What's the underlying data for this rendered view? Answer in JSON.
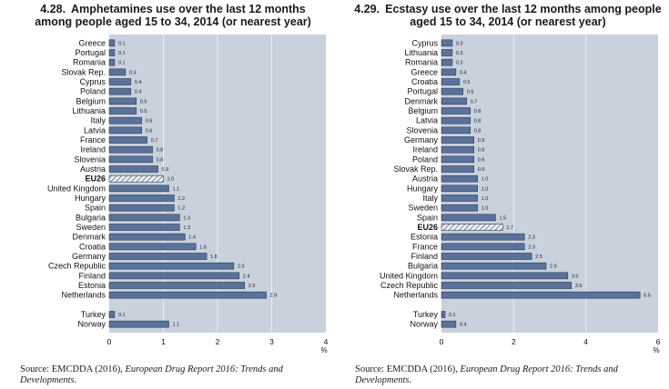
{
  "chart_data": [
    {
      "type": "bar",
      "orientation": "horizontal",
      "number": "4.28.",
      "title_line1": "Amphetamines use over the last 12 months",
      "title_line2": "among people aged 15 to 34, 2014 (or nearest year)",
      "xlabel": "%",
      "xlim": [
        0,
        4
      ],
      "xticks": [
        "0",
        "1",
        "2",
        "3",
        "4"
      ],
      "grid": true,
      "highlight": "EU26",
      "categories": [
        "Greece",
        "Portugal",
        "Romania",
        "Slovak Rep.",
        "Cyprus",
        "Poland",
        "Belgium",
        "Lithuania",
        "Italy",
        "Latvia",
        "France",
        "Ireland",
        "Slovenia",
        "Austria",
        "EU26",
        "United Kingdom",
        "Hungary",
        "Spain",
        "Bulgaria",
        "Sweden",
        "Denmark",
        "Croatia",
        "Germany",
        "Czech Republic",
        "Finland",
        "Estonia",
        "Netherlands",
        "",
        "Turkey",
        "Norway"
      ],
      "values": [
        0.1,
        0.1,
        0.1,
        0.3,
        0.4,
        0.4,
        0.5,
        0.5,
        0.6,
        0.6,
        0.7,
        0.8,
        0.8,
        0.9,
        1.0,
        1.1,
        1.2,
        1.2,
        1.3,
        1.3,
        1.4,
        1.6,
        1.8,
        2.3,
        2.4,
        2.5,
        2.9,
        null,
        0.1,
        1.1
      ],
      "labels": [
        "0.1",
        "0.1",
        "0.1",
        "0.3",
        "0.4",
        "0.4",
        "0.5",
        "0.5",
        "0.6",
        "0.6",
        "0.7",
        "0.8",
        "0.8",
        "0.9",
        "1.0",
        "1.1",
        "1.2",
        "1.2",
        "1.3",
        "1.3",
        "1.4",
        "1.6",
        "1.8",
        "2.3",
        "2.4",
        "2.5",
        "2.9",
        "",
        "0.1",
        "1.1"
      ],
      "source_prefix": "Source: EMCDDA (2016), ",
      "source_italic": "European Drug Report 2016: Trends and Developments",
      "source_suffix": "."
    },
    {
      "type": "bar",
      "orientation": "horizontal",
      "number": "4.29.",
      "title_line1": "Ecstasy use over the last 12 months among people",
      "title_line2": "aged 15 to 34, 2014 (or nearest year)",
      "xlabel": "%",
      "xlim": [
        0,
        6
      ],
      "xticks": [
        "0",
        "2",
        "4",
        "6"
      ],
      "grid": true,
      "highlight": "EU26",
      "categories": [
        "Cyprus",
        "Lithuania",
        "Romania",
        "Greece",
        "Croatia",
        "Portugal",
        "Denmark",
        "Belgium",
        "Latvia",
        "Slovenia",
        "Germany",
        "Ireland",
        "Poland",
        "Slovak Rep.",
        "Austria",
        "Hungary",
        "Italy",
        "Sweden",
        "Spain",
        "EU26",
        "Estonia",
        "France",
        "Finland",
        "Bulgaria",
        "United Kingdom",
        "Czech Republic",
        "Netherlands",
        "",
        "Turkey",
        "Norway"
      ],
      "values": [
        0.3,
        0.3,
        0.3,
        0.4,
        0.5,
        0.6,
        0.7,
        0.8,
        0.8,
        0.8,
        0.9,
        0.9,
        0.9,
        0.9,
        1.0,
        1.0,
        1.0,
        1.0,
        1.5,
        1.7,
        2.3,
        2.3,
        2.5,
        2.9,
        3.5,
        3.6,
        5.5,
        null,
        0.1,
        0.4
      ],
      "labels": [
        "0.3",
        "0.3",
        "0.3",
        "0.4",
        "0.5",
        "0.6",
        "0.7",
        "0.8",
        "0.8",
        "0.8",
        "0.9",
        "0.9",
        "0.9",
        "0.9",
        "1.0",
        "1.0",
        "1.0",
        "1.0",
        "1.5",
        "1.7",
        "2.3",
        "2.3",
        "2.5",
        "2.9",
        "3.5",
        "3.6",
        "5.5",
        "",
        "0.1",
        "0.4"
      ],
      "source_prefix": "Source: EMCDDA (2016), ",
      "source_italic": "European Drug Report 2016: Trends and Developments",
      "source_suffix": "."
    }
  ],
  "colors": {
    "bar": "#5a7299",
    "bar_edge": "#2a3d5c",
    "plot_bg": "#c9d1dd",
    "grid": "#e9edf3",
    "highlight_fill": "#eef0f4",
    "highlight_stripe": "#3f4f6b"
  }
}
